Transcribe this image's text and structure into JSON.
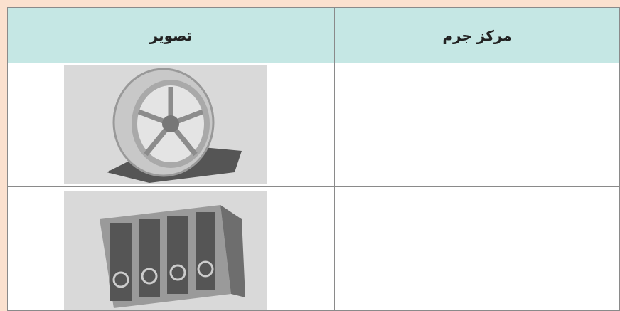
{
  "table": {
    "headers": [
      "تصویر",
      "مرکز جرم"
    ]
  }
}
